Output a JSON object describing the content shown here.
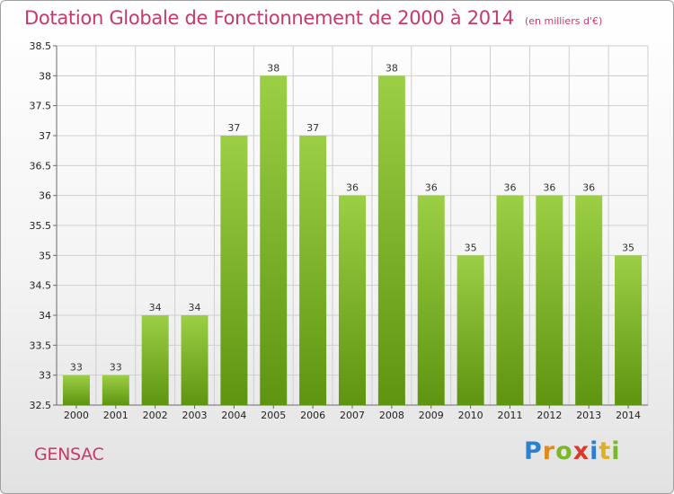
{
  "header": {
    "title": "Dotation Globale de Fonctionnement de 2000 à 2014",
    "unit": "(en milliers d'€)"
  },
  "footer": {
    "commune": "GENSAC",
    "logo": "Proxiti"
  },
  "colors": {
    "title": "#c8396b",
    "bar_top": "#9ccf45",
    "bar_bottom": "#5e9410",
    "grid": "#cfcfcf",
    "axis": "#6a6a6a"
  },
  "chart_data": {
    "type": "bar",
    "title": "Dotation Globale de Fonctionnement de 2000 à 2014",
    "subtitle": "(en milliers d'€)",
    "xlabel": "",
    "ylabel": "",
    "categories": [
      "2000",
      "2001",
      "2002",
      "2003",
      "2004",
      "2005",
      "2006",
      "2007",
      "2008",
      "2009",
      "2010",
      "2011",
      "2012",
      "2013",
      "2014"
    ],
    "values": [
      33,
      33,
      34,
      34,
      37,
      38,
      37,
      36,
      38,
      36,
      35,
      36,
      36,
      36,
      35
    ],
    "value_labels": [
      "33",
      "33",
      "34",
      "34",
      "37",
      "38",
      "37",
      "36",
      "38",
      "36",
      "35",
      "36",
      "36",
      "36",
      "35"
    ],
    "ylim": [
      32.5,
      38.5
    ],
    "yticks": [
      32.5,
      33,
      33.5,
      34,
      34.5,
      35,
      35.5,
      36,
      36.5,
      37,
      37.5,
      38,
      38.5
    ],
    "ytick_labels": [
      "32.5",
      "33",
      "33.5",
      "34",
      "34.5",
      "35",
      "35.5",
      "36",
      "36.5",
      "37",
      "37.5",
      "38",
      "38.5"
    ],
    "grid": true,
    "legend": "none"
  }
}
